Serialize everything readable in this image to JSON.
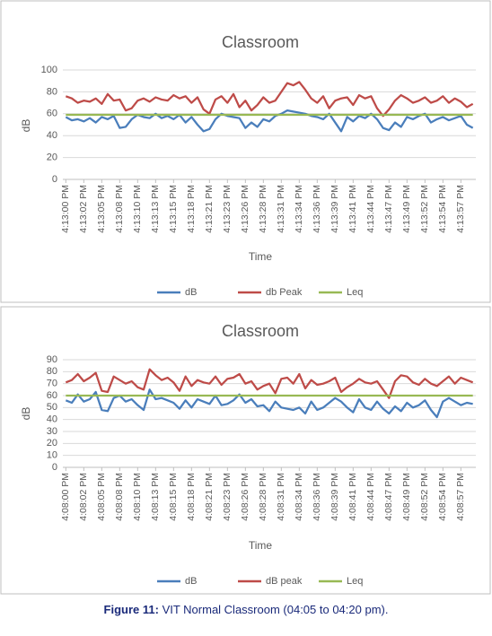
{
  "chart_data": [
    {
      "type": "line",
      "title": "Classroom",
      "x_label": "Time",
      "y_label": "dB",
      "grid": true,
      "legend": "bottom",
      "categories": [
        "4:13:00 PM",
        null,
        null,
        "4:13:02 PM",
        null,
        null,
        "4:13:05 PM",
        null,
        null,
        "4:13:08 PM",
        null,
        null,
        "4:13:10 PM",
        null,
        null,
        "4:13:13 PM",
        null,
        null,
        "4:13:15 PM",
        null,
        null,
        "4:13:18 PM",
        null,
        null,
        "4:13:21 PM",
        null,
        null,
        "4:13:23 PM",
        null,
        null,
        "4:13:26 PM",
        null,
        null,
        "4:13:28 PM",
        null,
        null,
        "4:13:31 PM",
        null,
        null,
        "4:13:34 PM",
        null,
        null,
        "4:13:36 PM",
        null,
        null,
        "4:13:39 PM",
        null,
        null,
        "4:13:41 PM",
        null,
        null,
        "4:13:44 PM",
        null,
        null,
        "4:13:47 PM",
        null,
        null,
        "4:13:49 PM",
        null,
        null,
        "4:13:52 PM",
        null,
        null,
        "4:13:54 PM",
        null,
        null,
        "4:13:57 PM",
        null,
        null
      ],
      "ylim": [
        0,
        100
      ],
      "yticks": [
        0,
        20,
        40,
        60,
        80,
        100
      ],
      "series": [
        {
          "name": "dB",
          "color": "#4a7ebb",
          "values": [
            57,
            54,
            55,
            53,
            56,
            52,
            57,
            55,
            58,
            47,
            48,
            55,
            59,
            57,
            56,
            60,
            56,
            58,
            55,
            59,
            52,
            57,
            50,
            44,
            46,
            55,
            60,
            58,
            57,
            56,
            47,
            52,
            48,
            55,
            53,
            58,
            60,
            63,
            62,
            61,
            60,
            58,
            57,
            55,
            60,
            52,
            44,
            57,
            53,
            58,
            56,
            60,
            55,
            47,
            45,
            52,
            48,
            57,
            55,
            58,
            60,
            52,
            55,
            57,
            54,
            56,
            58,
            50,
            47
          ]
        },
        {
          "name": "db Peak",
          "color": "#be4b48",
          "values": [
            76,
            74,
            70,
            72,
            71,
            74,
            69,
            78,
            72,
            73,
            63,
            65,
            72,
            74,
            71,
            75,
            73,
            72,
            77,
            74,
            76,
            70,
            75,
            64,
            60,
            73,
            76,
            70,
            78,
            66,
            72,
            63,
            68,
            75,
            70,
            72,
            80,
            88,
            86,
            89,
            82,
            74,
            70,
            76,
            65,
            72,
            74,
            75,
            68,
            77,
            74,
            76,
            65,
            58,
            64,
            72,
            77,
            74,
            70,
            72,
            75,
            70,
            72,
            76,
            70,
            74,
            71,
            66,
            69
          ]
        },
        {
          "name": "Leq",
          "color": "#98b954",
          "values": [
            59,
            59,
            59,
            59,
            59,
            59,
            59,
            59,
            59,
            59,
            59,
            59,
            59,
            59,
            59,
            59,
            59,
            59,
            59,
            59,
            59,
            59,
            59,
            59,
            59,
            59,
            59,
            59,
            59,
            59,
            59,
            59,
            59,
            59,
            59,
            59,
            59,
            59,
            59,
            59,
            59,
            59,
            59,
            59,
            59,
            59,
            59,
            59,
            59,
            59,
            59,
            59,
            59,
            59,
            59,
            59,
            59,
            59,
            59,
            59,
            59,
            59,
            59,
            59,
            59,
            59,
            59,
            59,
            59
          ]
        }
      ]
    },
    {
      "type": "line",
      "title": "Classroom",
      "x_label": "Time",
      "y_label": "dB",
      "grid": true,
      "legend": "bottom",
      "categories": [
        "4:08:00 PM",
        null,
        null,
        "4:08:02 PM",
        null,
        null,
        "4:08:05 PM",
        null,
        null,
        "4:08:08 PM",
        null,
        null,
        "4:08:10 PM",
        null,
        null,
        "4:08:13 PM",
        null,
        null,
        "4:08:15 PM",
        null,
        null,
        "4:08:18 PM",
        null,
        null,
        "4:08:21 PM",
        null,
        null,
        "4:08:23 PM",
        null,
        null,
        "4:08:26 PM",
        null,
        null,
        "4:08:28 PM",
        null,
        null,
        "4:08:31 PM",
        null,
        null,
        "4:08:34 PM",
        null,
        null,
        "4:08:36 PM",
        null,
        null,
        "4:08:39 PM",
        null,
        null,
        "4:08:41 PM",
        null,
        null,
        "4:08:44 PM",
        null,
        null,
        "4:08:47 PM",
        null,
        null,
        "4:08:49 PM",
        null,
        null,
        "4:08:52 PM",
        null,
        null,
        "4:08:54 PM",
        null,
        null,
        "4:08:57 PM",
        null,
        null
      ],
      "ylim": [
        0,
        90
      ],
      "yticks": [
        0,
        10,
        20,
        30,
        40,
        50,
        60,
        70,
        80,
        90
      ],
      "series": [
        {
          "name": "dB",
          "color": "#4a7ebb",
          "values": [
            56,
            54,
            61,
            55,
            57,
            63,
            48,
            47,
            58,
            60,
            55,
            57,
            52,
            48,
            65,
            57,
            58,
            56,
            54,
            49,
            56,
            50,
            57,
            55,
            53,
            60,
            52,
            53,
            56,
            61,
            54,
            57,
            51,
            52,
            47,
            55,
            50,
            49,
            48,
            50,
            45,
            55,
            48,
            50,
            54,
            58,
            55,
            50,
            46,
            57,
            50,
            48,
            55,
            49,
            45,
            51,
            47,
            54,
            50,
            52,
            56,
            48,
            42,
            55,
            58,
            55,
            52,
            54,
            53
          ]
        },
        {
          "name": "dB peak",
          "color": "#be4b48",
          "values": [
            71,
            73,
            78,
            72,
            75,
            79,
            64,
            63,
            76,
            73,
            70,
            72,
            67,
            65,
            82,
            77,
            73,
            75,
            71,
            64,
            76,
            68,
            73,
            71,
            70,
            76,
            69,
            74,
            75,
            78,
            70,
            72,
            65,
            68,
            70,
            62,
            74,
            75,
            70,
            78,
            66,
            73,
            69,
            70,
            72,
            75,
            63,
            67,
            70,
            74,
            71,
            70,
            72,
            65,
            58,
            72,
            77,
            76,
            71,
            69,
            74,
            70,
            68,
            72,
            76,
            70,
            75,
            73,
            71
          ]
        },
        {
          "name": "Leq",
          "color": "#98b954",
          "values": [
            60,
            60,
            60,
            60,
            60,
            60,
            60,
            60,
            60,
            60,
            60,
            60,
            60,
            60,
            60,
            60,
            60,
            60,
            60,
            60,
            60,
            60,
            60,
            60,
            60,
            60,
            60,
            60,
            60,
            60,
            60,
            60,
            60,
            60,
            60,
            60,
            60,
            60,
            60,
            60,
            60,
            60,
            60,
            60,
            60,
            60,
            60,
            60,
            60,
            60,
            60,
            60,
            60,
            60,
            60,
            60,
            60,
            60,
            60,
            60,
            60,
            60,
            60,
            60,
            60,
            60,
            60,
            60,
            60
          ]
        }
      ]
    }
  ],
  "caption": {
    "label": "Figure 11:",
    "text": "VIT Normal Classroom (04:05 to 04:20 pm)."
  }
}
